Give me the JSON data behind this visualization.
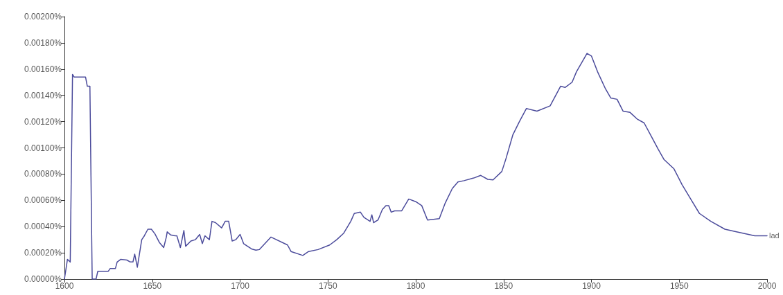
{
  "chart_data": {
    "type": "line",
    "xlim": [
      1600,
      2000
    ],
    "xticks": [
      1600,
      1650,
      1700,
      1750,
      1800,
      1850,
      1900,
      1950,
      2000
    ],
    "ylim": [
      0,
      0.002
    ],
    "yticks": [
      {
        "value": 0,
        "label": "0.00000%"
      },
      {
        "value": 0.0002,
        "label": "0.00020%"
      },
      {
        "value": 0.0004,
        "label": "0.00040%"
      },
      {
        "value": 0.0006,
        "label": "0.00060%"
      },
      {
        "value": 0.0008,
        "label": "0.00080%"
      },
      {
        "value": 0.001,
        "label": "0.00100%"
      },
      {
        "value": 0.0012,
        "label": "0.00120%"
      },
      {
        "value": 0.0014,
        "label": "0.00140%"
      },
      {
        "value": 0.0016,
        "label": "0.00160%"
      },
      {
        "value": 0.0018,
        "label": "0.00180%"
      },
      {
        "value": 0.002,
        "label": "0.00200%"
      }
    ],
    "grid": false,
    "marker": "none",
    "line_style": "solid",
    "series": [
      {
        "name": "lad",
        "color": "#4b4b9b",
        "x": [
          1600,
          1601.7,
          1603.3,
          1604.6,
          1605.5,
          1612,
          1613,
          1614.5,
          1615.8,
          1618,
          1619,
          1625,
          1626,
          1629,
          1630,
          1632,
          1635.5,
          1637.5,
          1639,
          1640,
          1641.5,
          1644,
          1645.5,
          1647.5,
          1649.5,
          1651.5,
          1654,
          1656.5,
          1658,
          1658.5,
          1660.5,
          1663,
          1664,
          1666,
          1668,
          1669,
          1672,
          1674.5,
          1677,
          1678.5,
          1680,
          1682.5,
          1684,
          1686,
          1689.5,
          1691.5,
          1693.5,
          1695.5,
          1697.5,
          1700,
          1702,
          1706.5,
          1709,
          1711,
          1717.6,
          1727,
          1729,
          1735.7,
          1739,
          1744.4,
          1751,
          1755,
          1759,
          1763,
          1765,
          1768.5,
          1770.5,
          1774,
          1775,
          1776,
          1778.5,
          1781,
          1783,
          1784.6,
          1786,
          1788,
          1792,
          1796,
          1800,
          1803.4,
          1806.7,
          1813.4,
          1816.8,
          1820.8,
          1824,
          1827.5,
          1833,
          1837,
          1841,
          1844,
          1849,
          1851.3,
          1855.3,
          1859,
          1863,
          1869,
          1876.5,
          1882.5,
          1885,
          1889,
          1891.5,
          1897.5,
          1900,
          1903.5,
          1908,
          1911,
          1914.6,
          1918,
          1922,
          1926,
          1930,
          1934,
          1938,
          1941.4,
          1947,
          1951.6,
          1957,
          1961.5,
          1968,
          1976,
          1982.6,
          1993,
          2000
        ],
        "values": [
          0,
          0.00015,
          0.00013,
          0.00156,
          0.00154,
          0.00154,
          0.00147,
          0.00147,
          0,
          0,
          6e-05,
          6e-05,
          8e-05,
          8e-05,
          0.00013,
          0.00015,
          0.000145,
          0.00013,
          0.00013,
          0.00019,
          9e-05,
          0.0003,
          0.00033,
          0.00038,
          0.00038,
          0.000345,
          0.00028,
          0.00024,
          0.00032,
          0.00036,
          0.000336,
          0.00033,
          0.00033,
          0.00024,
          0.00037,
          0.00025,
          0.00029,
          0.0003,
          0.00034,
          0.00027,
          0.00033,
          0.0003,
          0.00044,
          0.00043,
          0.00039,
          0.00044,
          0.00044,
          0.00029,
          0.0003,
          0.00034,
          0.00027,
          0.00023,
          0.00022,
          0.000225,
          0.00032,
          0.00026,
          0.00021,
          0.00018,
          0.00021,
          0.000225,
          0.00026,
          0.0003,
          0.00035,
          0.00044,
          0.0005,
          0.00051,
          0.00047,
          0.00044,
          0.00049,
          0.00043,
          0.00045,
          0.00053,
          0.00056,
          0.00056,
          0.00051,
          0.00052,
          0.00052,
          0.00061,
          0.00059,
          0.00056,
          0.00045,
          0.00046,
          0.00058,
          0.00069,
          0.00074,
          0.00075,
          0.00077,
          0.00079,
          0.00076,
          0.000756,
          0.00082,
          0.000915,
          0.0011,
          0.0012,
          0.0013,
          0.00128,
          0.00132,
          0.00147,
          0.00146,
          0.0015,
          0.00158,
          0.00172,
          0.0017,
          0.00158,
          0.00145,
          0.00138,
          0.00137,
          0.00128,
          0.00127,
          0.00122,
          0.00119,
          0.00109,
          0.00099,
          0.00091,
          0.00084,
          0.00072,
          0.0006,
          0.0005,
          0.00044,
          0.00038,
          0.00036,
          0.00033,
          0.00033
        ]
      }
    ]
  }
}
